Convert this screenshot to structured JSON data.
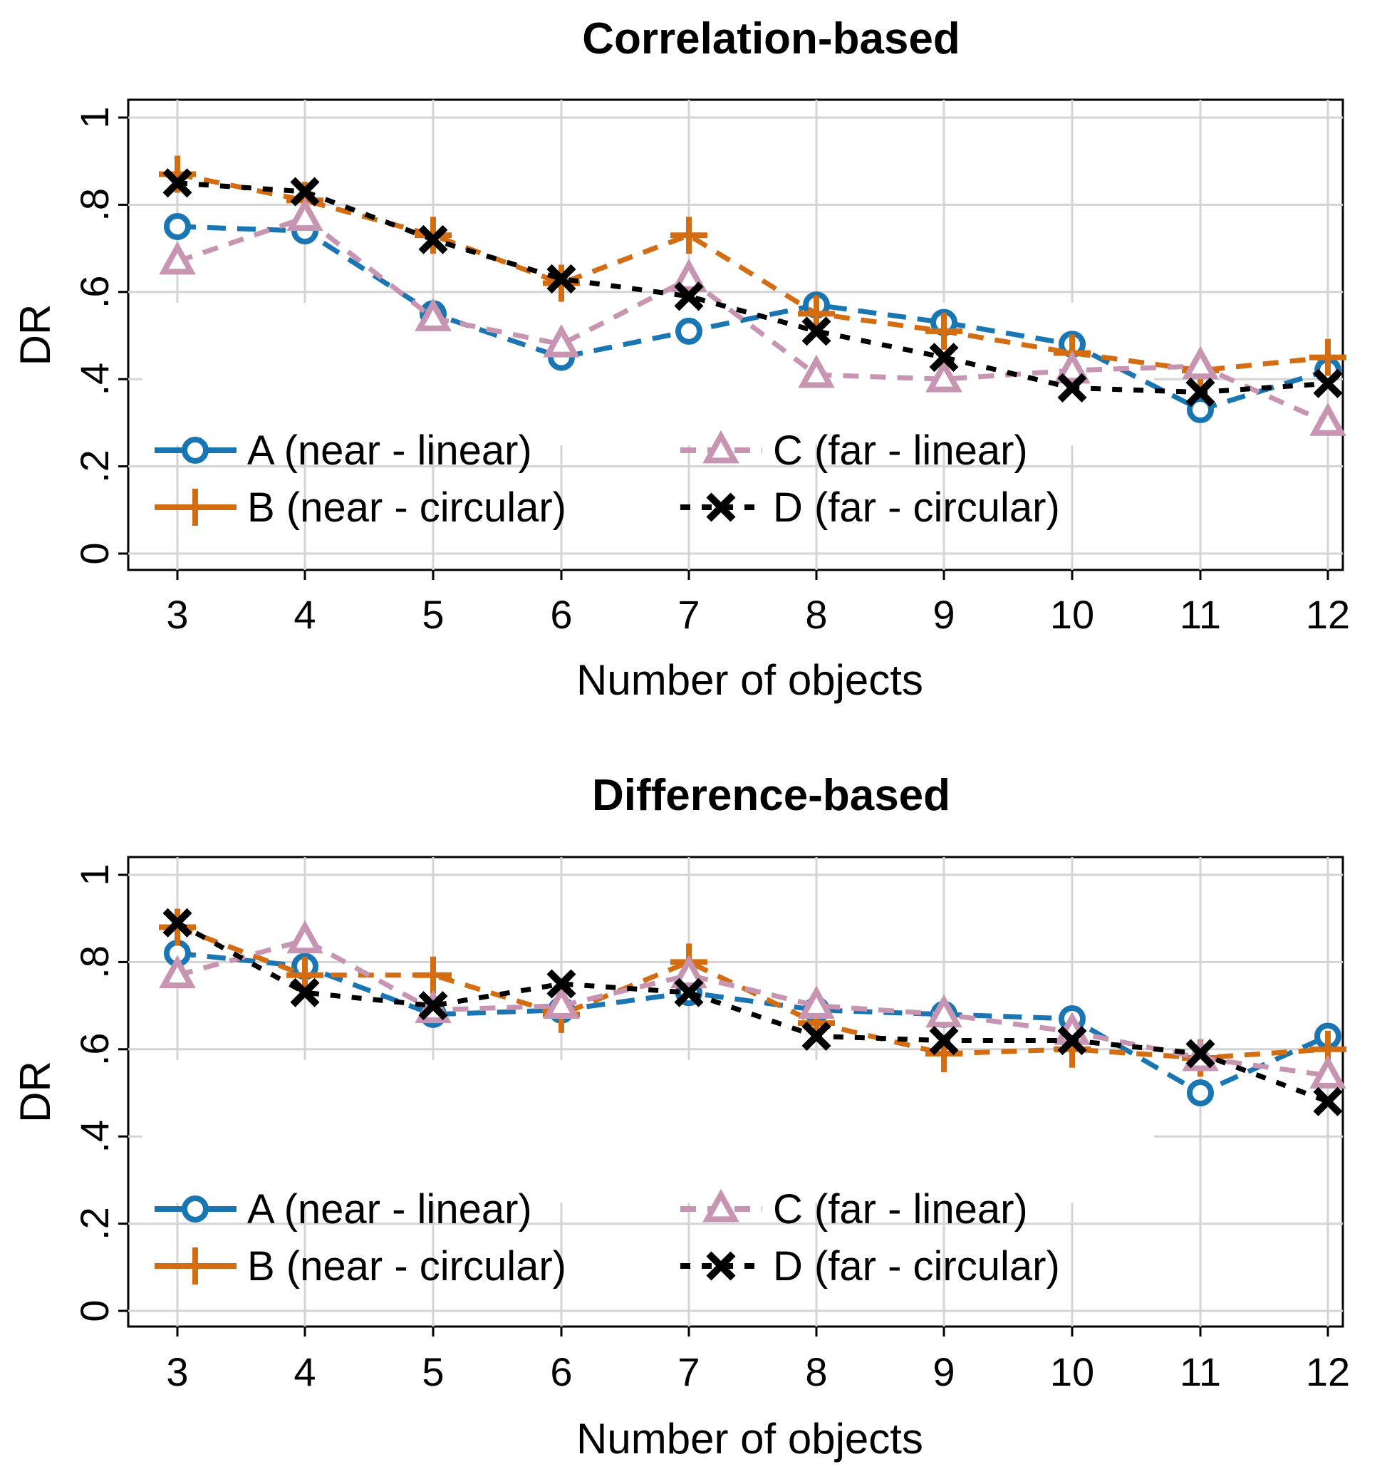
{
  "chart_data": [
    {
      "type": "line",
      "title": "Correlation-based",
      "xlabel": "Number of objects",
      "ylabel": "DR",
      "x": [
        3,
        4,
        5,
        6,
        7,
        8,
        9,
        10,
        11,
        12
      ],
      "ylim": [
        0,
        1
      ],
      "yticks": [
        "0",
        ".2",
        ".4",
        ".6",
        ".8",
        "1"
      ],
      "grid": true,
      "series": [
        {
          "name": "A (near - linear)",
          "color": "#1a76b3",
          "marker": "circle",
          "dash": "long",
          "values": [
            0.75,
            0.74,
            0.55,
            0.45,
            0.51,
            0.57,
            0.53,
            0.48,
            0.33,
            0.42
          ]
        },
        {
          "name": "B (near - circular)",
          "color": "#d46d12",
          "marker": "plus",
          "dash": "medium",
          "values": [
            0.87,
            0.81,
            0.73,
            0.62,
            0.73,
            0.55,
            0.51,
            0.46,
            0.42,
            0.45
          ]
        },
        {
          "name": "C (far - linear)",
          "color": "#c795b2",
          "marker": "triangle",
          "dash": "medium",
          "values": [
            0.67,
            0.77,
            0.54,
            0.48,
            0.63,
            0.41,
            0.4,
            0.42,
            0.43,
            0.3
          ]
        },
        {
          "name": "D (far - circular)",
          "color": "#000000",
          "marker": "x",
          "dash": "short",
          "values": [
            0.85,
            0.83,
            0.72,
            0.63,
            0.59,
            0.51,
            0.45,
            0.38,
            0.37,
            0.39
          ]
        }
      ]
    },
    {
      "type": "line",
      "title": "Difference-based",
      "xlabel": "Number of objects",
      "ylabel": "DR",
      "x": [
        3,
        4,
        5,
        6,
        7,
        8,
        9,
        10,
        11,
        12
      ],
      "ylim": [
        0,
        1
      ],
      "yticks": [
        "0",
        ".2",
        ".4",
        ".6",
        ".8",
        "1"
      ],
      "grid": true,
      "series": [
        {
          "name": "A (near - linear)",
          "color": "#1a76b3",
          "marker": "circle",
          "dash": "long",
          "values": [
            0.82,
            0.79,
            0.68,
            0.69,
            0.73,
            0.69,
            0.68,
            0.67,
            0.5,
            0.63
          ]
        },
        {
          "name": "B (near - circular)",
          "color": "#d46d12",
          "marker": "plus",
          "dash": "medium",
          "values": [
            0.88,
            0.77,
            0.77,
            0.68,
            0.8,
            0.66,
            0.59,
            0.6,
            0.58,
            0.6
          ]
        },
        {
          "name": "C (far - linear)",
          "color": "#c795b2",
          "marker": "triangle",
          "dash": "medium",
          "values": [
            0.77,
            0.85,
            0.69,
            0.7,
            0.77,
            0.7,
            0.68,
            0.64,
            0.58,
            0.54
          ]
        },
        {
          "name": "D (far - circular)",
          "color": "#000000",
          "marker": "x",
          "dash": "short",
          "values": [
            0.89,
            0.73,
            0.7,
            0.75,
            0.73,
            0.63,
            0.62,
            0.62,
            0.59,
            0.48
          ]
        }
      ]
    }
  ]
}
